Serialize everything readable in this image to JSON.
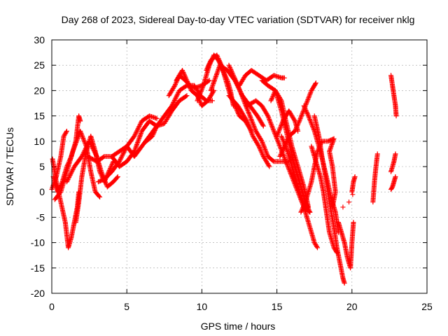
{
  "chart_data": {
    "type": "scatter",
    "title": "Day 268 of 2023, Sidereal Day-to-day VTEC variation (SDTVAR) for receiver nklg",
    "xlabel": "GPS time / hours",
    "ylabel": "SDTVAR / TECUs",
    "xlim": [
      0,
      25
    ],
    "ylim": [
      -20,
      30
    ],
    "xticks": [
      0,
      5,
      10,
      15,
      20,
      25
    ],
    "yticks": [
      -20,
      -15,
      -10,
      -5,
      0,
      5,
      10,
      15,
      20,
      25,
      30
    ],
    "grid": true,
    "marker": "plus",
    "color": "#ff0000",
    "tracks": [
      [
        [
          0.0,
          0.5
        ],
        [
          0.3,
          3
        ],
        [
          0.6,
          7
        ],
        [
          0.8,
          11
        ],
        [
          1.0,
          12
        ]
      ],
      [
        [
          0.05,
          6.5
        ],
        [
          0.3,
          2
        ],
        [
          0.6,
          -2
        ],
        [
          0.9,
          -6
        ],
        [
          1.1,
          -11
        ],
        [
          1.3,
          -9
        ],
        [
          1.5,
          -6
        ],
        [
          1.7,
          -3
        ],
        [
          1.8,
          0
        ]
      ],
      [
        [
          0.1,
          3
        ],
        [
          0.4,
          0
        ],
        [
          0.7,
          2
        ],
        [
          1.0,
          5
        ],
        [
          1.3,
          7
        ],
        [
          1.6,
          10
        ],
        [
          1.8,
          15
        ],
        [
          1.9,
          14
        ]
      ],
      [
        [
          0.2,
          -1.5
        ],
        [
          0.6,
          0
        ],
        [
          1.0,
          4
        ],
        [
          1.4,
          8
        ],
        [
          1.9,
          12
        ],
        [
          2.3,
          9
        ],
        [
          2.6,
          4
        ],
        [
          2.9,
          0
        ],
        [
          3.2,
          -1
        ]
      ],
      [
        [
          1.6,
          -6
        ],
        [
          1.8,
          -2
        ],
        [
          2.0,
          3
        ],
        [
          2.3,
          8
        ],
        [
          2.6,
          11
        ],
        [
          2.9,
          8
        ],
        [
          3.2,
          4
        ],
        [
          3.5,
          2
        ],
        [
          3.8,
          4
        ],
        [
          4.1,
          6
        ]
      ],
      [
        [
          1.0,
          2
        ],
        [
          1.5,
          5
        ],
        [
          2.0,
          7
        ],
        [
          2.5,
          10
        ],
        [
          3.0,
          7
        ],
        [
          3.3,
          4
        ],
        [
          3.7,
          1
        ],
        [
          4.1,
          2
        ],
        [
          4.4,
          3
        ]
      ],
      [
        [
          2.4,
          7
        ],
        [
          3.0,
          6
        ],
        [
          3.5,
          7
        ],
        [
          4.0,
          7
        ],
        [
          4.5,
          5
        ],
        [
          5.0,
          6
        ],
        [
          5.5,
          8
        ],
        [
          6.0,
          12
        ],
        [
          6.5,
          14
        ],
        [
          7.0,
          13
        ]
      ],
      [
        [
          3.1,
          2
        ],
        [
          3.5,
          2.5
        ],
        [
          4.0,
          4
        ],
        [
          4.5,
          6
        ],
        [
          5.0,
          9
        ],
        [
          5.5,
          11
        ],
        [
          6.0,
          14
        ],
        [
          6.5,
          15
        ],
        [
          7.0,
          14.5
        ]
      ],
      [
        [
          4.0,
          7
        ],
        [
          4.5,
          8
        ],
        [
          5.0,
          9
        ],
        [
          5.5,
          7
        ],
        [
          6.0,
          9
        ],
        [
          6.5,
          11
        ],
        [
          7.0,
          13
        ],
        [
          7.5,
          13.5
        ],
        [
          8.0,
          16
        ],
        [
          8.5,
          18
        ],
        [
          9.0,
          19
        ]
      ],
      [
        [
          6.3,
          10
        ],
        [
          6.7,
          11
        ],
        [
          7.0,
          13
        ],
        [
          7.5,
          15
        ],
        [
          8.0,
          17
        ],
        [
          8.5,
          20
        ],
        [
          9.0,
          21
        ],
        [
          9.5,
          20.5
        ],
        [
          10.0,
          21
        ],
        [
          10.5,
          22
        ]
      ],
      [
        [
          7.8,
          19
        ],
        [
          8.2,
          21
        ],
        [
          8.5,
          23
        ],
        [
          8.9,
          22
        ],
        [
          9.2,
          21
        ],
        [
          9.5,
          21
        ],
        [
          9.9,
          19
        ],
        [
          10.3,
          18
        ],
        [
          10.7,
          18
        ]
      ],
      [
        [
          8.3,
          22
        ],
        [
          8.7,
          24
        ],
        [
          9.0,
          22
        ],
        [
          9.3,
          20
        ],
        [
          9.7,
          19
        ],
        [
          10.0,
          17
        ],
        [
          10.4,
          18
        ],
        [
          10.8,
          20
        ]
      ],
      [
        [
          9.7,
          18
        ],
        [
          10.1,
          21
        ],
        [
          10.5,
          25
        ],
        [
          10.8,
          27
        ],
        [
          11.1,
          26
        ],
        [
          11.4,
          24
        ],
        [
          11.7,
          22
        ],
        [
          11.9,
          20
        ],
        [
          12.1,
          17
        ]
      ],
      [
        [
          10.3,
          24
        ],
        [
          10.6,
          26
        ],
        [
          11.0,
          27
        ],
        [
          11.3,
          25
        ],
        [
          11.6,
          22
        ],
        [
          11.9,
          19
        ],
        [
          12.2,
          17
        ],
        [
          12.5,
          15
        ],
        [
          12.9,
          14
        ],
        [
          13.3,
          12
        ]
      ],
      [
        [
          10.6,
          20
        ],
        [
          11.2,
          25
        ],
        [
          11.7,
          24
        ],
        [
          12.2,
          22
        ],
        [
          12.7,
          19
        ],
        [
          13.2,
          17
        ],
        [
          13.7,
          15
        ],
        [
          14.1,
          13
        ]
      ],
      [
        [
          11.8,
          25
        ],
        [
          12.1,
          23
        ],
        [
          12.4,
          21
        ],
        [
          12.8,
          18
        ],
        [
          13.2,
          15
        ],
        [
          13.6,
          12
        ],
        [
          14.0,
          10
        ],
        [
          14.4,
          7
        ],
        [
          14.8,
          6
        ],
        [
          15.3,
          6
        ],
        [
          15.8,
          6
        ]
      ],
      [
        [
          11.8,
          19
        ],
        [
          12.4,
          17
        ],
        [
          13.0,
          14
        ],
        [
          13.4,
          11
        ],
        [
          13.8,
          9
        ],
        [
          14.1,
          7
        ],
        [
          14.5,
          5
        ]
      ],
      [
        [
          12.5,
          21
        ],
        [
          12.9,
          23
        ],
        [
          13.3,
          24
        ],
        [
          13.8,
          23
        ],
        [
          14.3,
          22
        ],
        [
          14.8,
          23
        ],
        [
          15.3,
          22.5
        ],
        [
          15.5,
          22.5
        ]
      ],
      [
        [
          14.0,
          22
        ],
        [
          14.4,
          21
        ],
        [
          14.9,
          20
        ],
        [
          15.3,
          16
        ],
        [
          15.7,
          11
        ],
        [
          16.1,
          6
        ],
        [
          16.5,
          2
        ],
        [
          16.9,
          -2
        ],
        [
          17.2,
          -4
        ]
      ],
      [
        [
          14.6,
          18
        ],
        [
          14.9,
          20
        ],
        [
          15.3,
          18
        ],
        [
          15.6,
          14
        ],
        [
          16.0,
          9
        ],
        [
          16.4,
          5
        ],
        [
          16.8,
          1
        ],
        [
          17.1,
          -3
        ]
      ],
      [
        [
          13.0,
          17
        ],
        [
          13.6,
          18
        ],
        [
          14.0,
          17
        ],
        [
          14.4,
          15
        ],
        [
          14.8,
          12
        ],
        [
          15.2,
          9
        ],
        [
          15.6,
          6
        ],
        [
          16.0,
          3
        ],
        [
          16.4,
          0
        ],
        [
          16.8,
          -3
        ],
        [
          17.2,
          -4
        ]
      ],
      [
        [
          15.0,
          11
        ],
        [
          15.4,
          14
        ],
        [
          15.8,
          16
        ],
        [
          16.2,
          14
        ],
        [
          16.4,
          12
        ]
      ],
      [
        [
          15.2,
          7
        ],
        [
          15.5,
          9
        ],
        [
          15.8,
          11
        ],
        [
          16.2,
          12
        ],
        [
          16.5,
          14
        ],
        [
          16.9,
          17
        ],
        [
          17.3,
          20
        ],
        [
          17.6,
          21.5
        ]
      ],
      [
        [
          15.3,
          11
        ],
        [
          15.7,
          8
        ],
        [
          16.0,
          5
        ],
        [
          16.4,
          1
        ],
        [
          16.8,
          -3
        ],
        [
          17.2,
          -7
        ],
        [
          17.5,
          -10
        ],
        [
          17.7,
          -11
        ]
      ],
      [
        [
          16.6,
          -4
        ],
        [
          16.9,
          -2
        ],
        [
          17.3,
          2
        ],
        [
          17.7,
          8
        ],
        [
          18.0,
          10
        ],
        [
          18.4,
          10
        ],
        [
          18.8,
          10.5
        ],
        [
          18.5,
          8
        ],
        [
          18.7,
          5
        ],
        [
          18.9,
          0
        ],
        [
          18.7,
          -3
        ]
      ],
      [
        [
          16.8,
          17
        ],
        [
          17.1,
          15
        ],
        [
          17.5,
          12
        ],
        [
          17.9,
          8
        ],
        [
          18.3,
          3
        ],
        [
          18.6,
          -1
        ],
        [
          18.9,
          -4
        ],
        [
          19.1,
          -8
        ]
      ],
      [
        [
          17.3,
          9
        ],
        [
          17.6,
          6
        ],
        [
          17.9,
          3
        ],
        [
          18.1,
          0
        ],
        [
          18.3,
          -4
        ],
        [
          18.5,
          -8
        ],
        [
          18.8,
          -11
        ],
        [
          19.0,
          -12
        ]
      ],
      [
        [
          17.5,
          15
        ],
        [
          17.8,
          11
        ],
        [
          18.0,
          7
        ],
        [
          18.3,
          2
        ],
        [
          18.5,
          -2
        ],
        [
          18.8,
          -7
        ],
        [
          19.0,
          -11
        ],
        [
          19.2,
          -14
        ],
        [
          19.4,
          -17
        ],
        [
          19.5,
          -18
        ]
      ],
      [
        [
          19.1,
          -6
        ],
        [
          19.3,
          -8
        ],
        [
          19.5,
          -10
        ],
        [
          19.7,
          -13
        ],
        [
          19.9,
          -15
        ],
        [
          20.0,
          -10
        ],
        [
          20.1,
          -6
        ]
      ],
      [
        [
          20.0,
          0
        ],
        [
          20.1,
          2
        ],
        [
          20.2,
          3
        ]
      ],
      [
        [
          21.4,
          -2
        ],
        [
          21.5,
          2
        ],
        [
          21.6,
          5
        ],
        [
          21.7,
          7.5
        ]
      ],
      [
        [
          22.6,
          0.5
        ],
        [
          22.7,
          1
        ],
        [
          22.8,
          2
        ],
        [
          22.9,
          3
        ]
      ],
      [
        [
          22.6,
          4
        ],
        [
          22.8,
          6
        ],
        [
          22.9,
          7.5
        ]
      ],
      [
        [
          22.6,
          23
        ],
        [
          22.7,
          21
        ],
        [
          22.8,
          19
        ],
        [
          22.9,
          17
        ],
        [
          22.95,
          15
        ]
      ]
    ],
    "isolated_points": [
      [
        19.4,
        -3
      ],
      [
        19.8,
        -2
      ],
      [
        20.05,
        -0.5
      ]
    ]
  }
}
